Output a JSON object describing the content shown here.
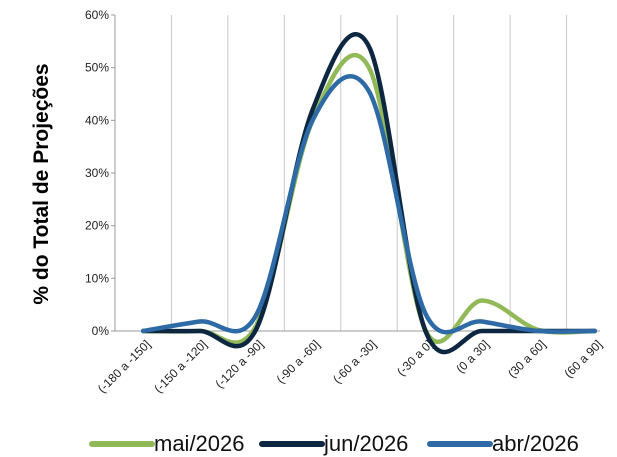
{
  "chart_data": {
    "type": "line",
    "ylabel": "% do Total de Projeções",
    "xlabel": "",
    "categories": [
      "(-180 a -150]",
      "(-150 a -120]",
      "(-120 a -90]",
      "(-90 a -60]",
      "(-60 a -30]",
      "(-30 a 0]",
      "(0 a 30]",
      "(30 a 60]",
      "(60 a 90]"
    ],
    "y_ticks": [
      "0%",
      "10%",
      "20%",
      "30%",
      "40%",
      "50%",
      "60%"
    ],
    "ylim": [
      0,
      60
    ],
    "grid": "vertical",
    "legend_position": "bottom",
    "series": [
      {
        "name": "mai/2026",
        "color": "#92b957",
        "values": [
          0.0,
          0.0,
          1.0,
          40.0,
          50.0,
          0.2,
          5.8,
          0.2,
          0.0
        ]
      },
      {
        "name": "jun/2026",
        "color": "#0d2740",
        "values": [
          0.0,
          0.0,
          0.3,
          42.0,
          54.0,
          0.0,
          0.0,
          0.0,
          0.0
        ]
      },
      {
        "name": "abr/2026",
        "color": "#2e6aa6",
        "values": [
          0.0,
          1.8,
          3.0,
          40.0,
          45.5,
          3.3,
          1.8,
          0.0,
          0.0
        ]
      }
    ]
  }
}
